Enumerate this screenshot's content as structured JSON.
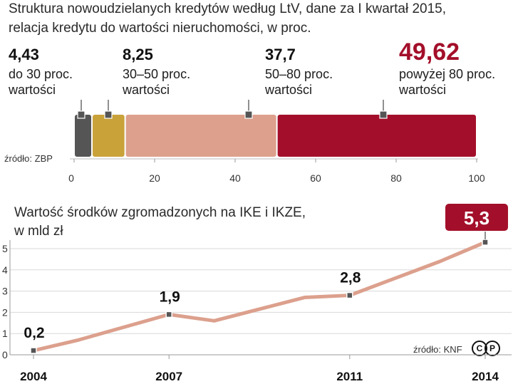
{
  "chart_data": [
    {
      "type": "bar",
      "subtype": "stacked-horizontal",
      "title_line1": "Struktura nowoudzielanych kredytów według LtV, dane za I kwartał 2015,",
      "title_line2": "relacja kredytu do wartości nieruchomości, w proc.",
      "source": "źródło: ZBP",
      "xlim": [
        0,
        100
      ],
      "xticks": [
        "0",
        "20",
        "40",
        "60",
        "80",
        "100"
      ],
      "segments": [
        {
          "value": 4.43,
          "label_value": "4,43",
          "label_line1": "do 30 proc.",
          "label_line2": "wartości",
          "color": "#555555"
        },
        {
          "value": 8.25,
          "label_value": "8,25",
          "label_line1": "30–50 proc.",
          "label_line2": "wartości",
          "color": "#c9a23a"
        },
        {
          "value": 37.7,
          "label_value": "37,7",
          "label_line1": "50–80 proc.",
          "label_line2": "wartości",
          "color": "#dca08d"
        },
        {
          "value": 49.62,
          "label_value": "49,62",
          "label_line1": "powyżej 80 proc.",
          "label_line2": "wartości",
          "color": "#a30f2a"
        }
      ]
    },
    {
      "type": "line",
      "title_line1": "Wartość środków zgromadzonych na IKE i IKZE,",
      "title_line2": "w mld zł",
      "source": "źródło: KNF",
      "x": [
        2004,
        2005,
        2006,
        2007,
        2008,
        2009,
        2010,
        2011,
        2012,
        2013,
        2014
      ],
      "y": [
        0.2,
        0.7,
        1.3,
        1.9,
        1.6,
        2.15,
        2.7,
        2.8,
        3.6,
        4.4,
        5.3
      ],
      "xticks": [
        "2004",
        "2007",
        "2011",
        "2014"
      ],
      "yticks": [
        "0",
        "1",
        "2",
        "3",
        "4",
        "5"
      ],
      "ylim": [
        0,
        5.3
      ],
      "annotations": [
        {
          "year": 2004,
          "label": "0,2",
          "highlight": false
        },
        {
          "year": 2007,
          "label": "1,9",
          "highlight": false
        },
        {
          "year": 2011,
          "label": "2,8",
          "highlight": false
        },
        {
          "year": 2014,
          "label": "5,3",
          "highlight": true
        }
      ],
      "line_color": "#dca08d",
      "highlight_color": "#a30f2a"
    }
  ]
}
